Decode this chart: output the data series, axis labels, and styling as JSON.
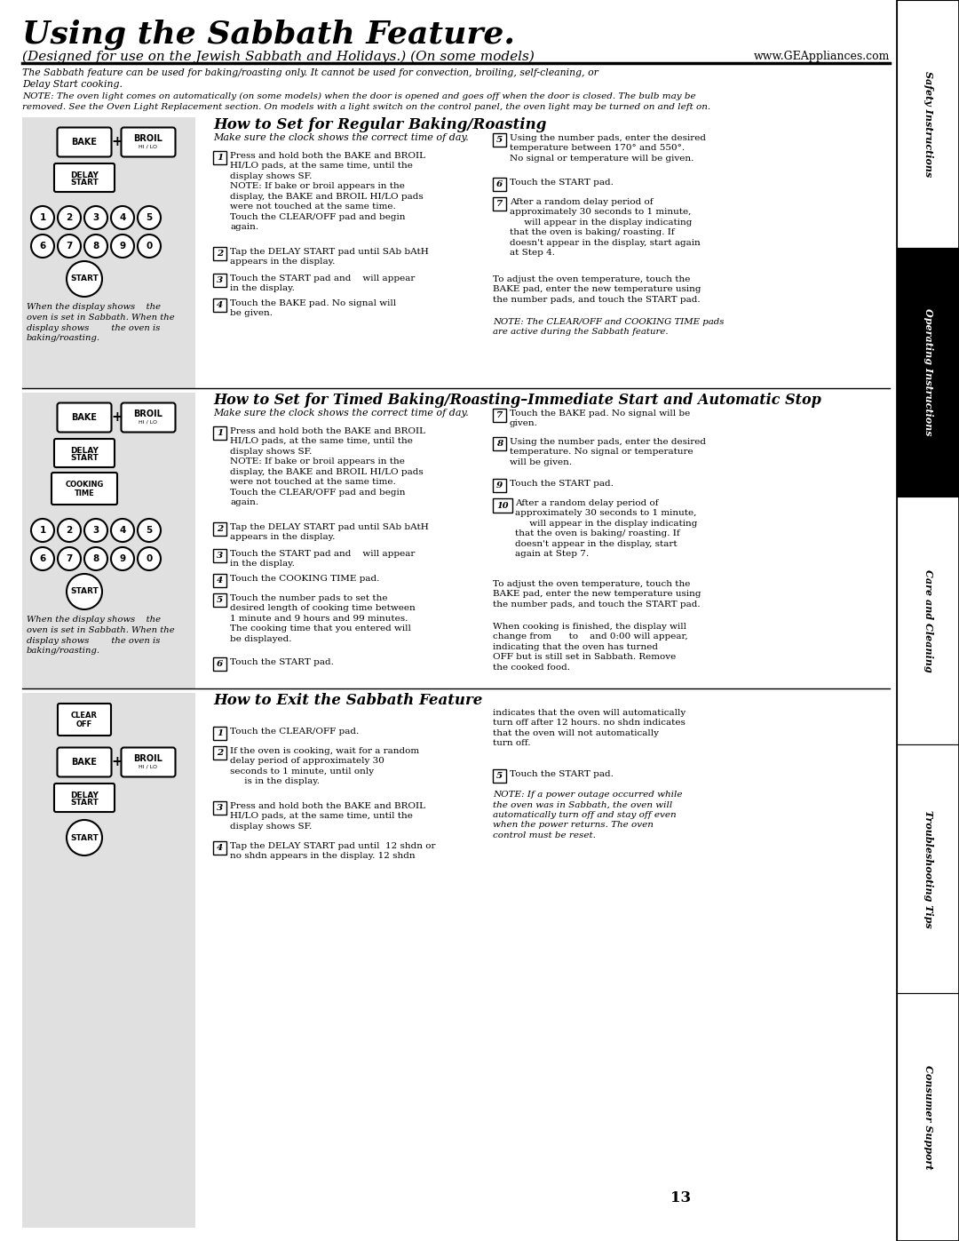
{
  "title": "Using the Sabbath Feature.",
  "subtitle": "(Designed for use on the Jewish Sabbath and Holidays.) (On some models)",
  "website": "www.GEAppliances.com",
  "bg_color": "#ffffff",
  "sidebar_labels": [
    "Safety Instructions",
    "Operating Instructions",
    "Care and Cleaning",
    "Troubleshooting Tips",
    "Consumer Support"
  ],
  "page_number": "13",
  "sec1_heading": "How to Set for Regular Baking/Roasting",
  "sec2_heading": "How to Set for Timed Baking/Roasting–Immediate Start and Automatic Stop",
  "sec3_heading": "How to Exit the Sabbath Feature"
}
